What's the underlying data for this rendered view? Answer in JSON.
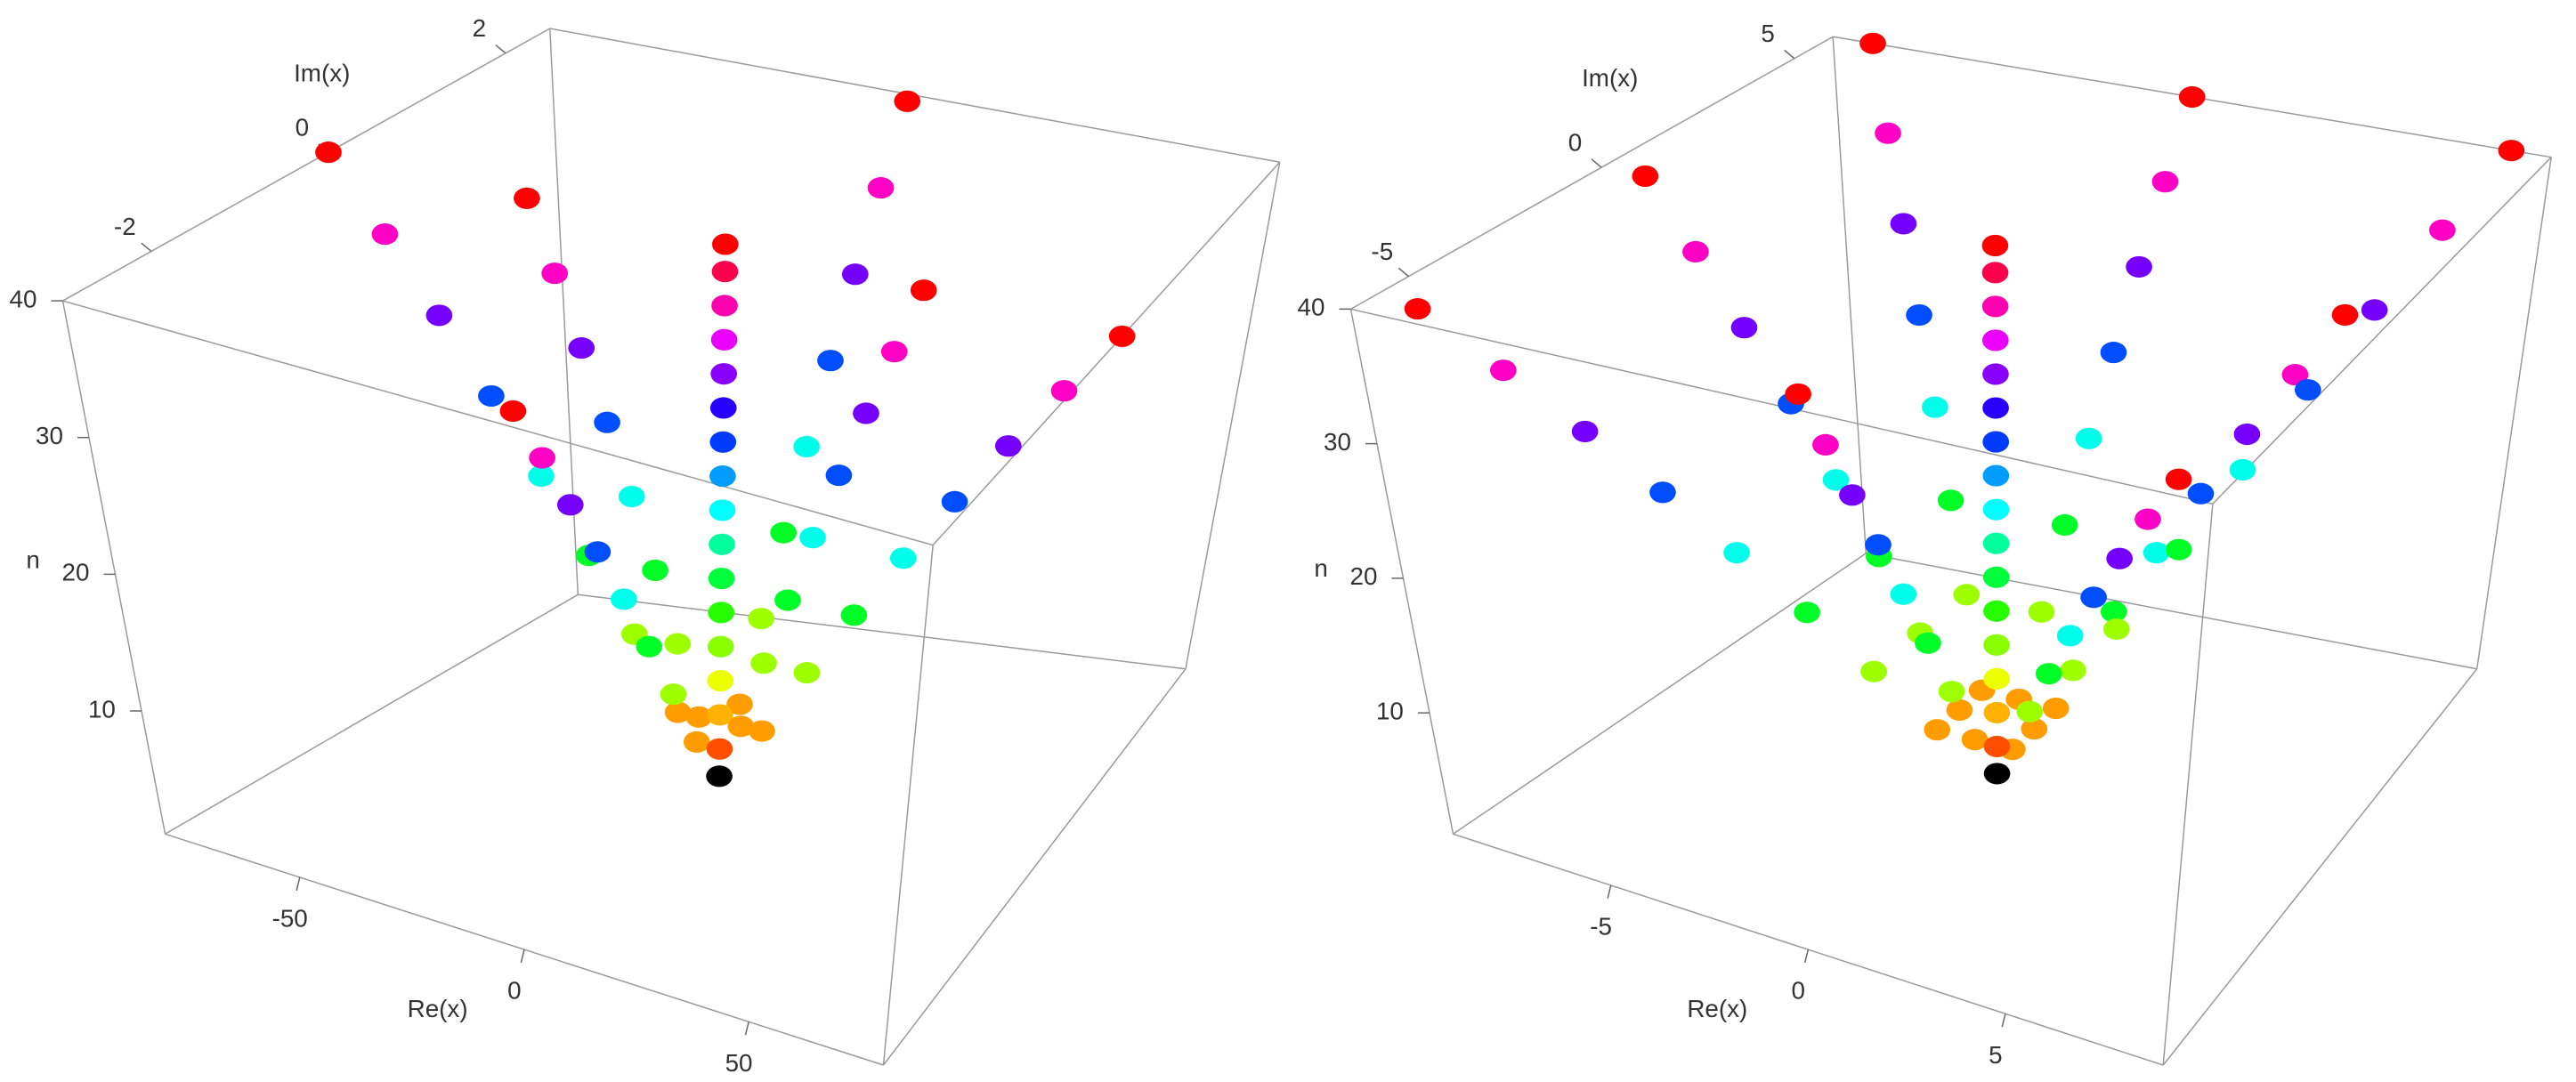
{
  "chart_data": [
    {
      "type": "scatter3d",
      "xlabel": "Re(x)",
      "ylabel": "Im(x)",
      "zlabel": "n",
      "xlim": [
        -80,
        80
      ],
      "ylim": [
        -3,
        2.5
      ],
      "zlim": [
        1,
        40
      ],
      "xticks": [
        -50,
        0,
        50
      ],
      "yticks": [
        -2,
        0,
        2
      ],
      "zticks": [
        10,
        20,
        30,
        40
      ],
      "colormap": [
        "#ff0000",
        "#ffff00",
        "#00ff00",
        "#00ffff",
        "#0000ff",
        "#ff00ff",
        "#ff0000"
      ],
      "series": [
        {
          "x": [
            -10,
            -20,
            -30,
            -40,
            -50,
            -60,
            -70,
            -80
          ],
          "y": [
            0,
            0,
            0,
            0,
            0,
            0,
            0,
            0
          ],
          "z": [
            5,
            10,
            15,
            20,
            25,
            30,
            35,
            40
          ]
        },
        {
          "x": [
            10,
            20,
            30,
            40,
            50,
            60,
            70,
            80
          ],
          "y": [
            0,
            0,
            0,
            0,
            0,
            0,
            0,
            0
          ],
          "z": [
            5,
            10,
            15,
            20,
            25,
            30,
            35,
            40
          ]
        },
        {
          "x": [
            -5,
            -10,
            -15,
            -20,
            -25,
            -30,
            -35,
            -40
          ],
          "y": [
            0,
            0,
            0,
            0,
            0,
            0,
            0,
            0
          ],
          "z": [
            5,
            10,
            15,
            20,
            25,
            30,
            35,
            40
          ]
        },
        {
          "x": [
            5,
            10,
            15,
            20,
            25,
            30,
            35,
            40
          ],
          "y": [
            0,
            0,
            0,
            0,
            0,
            0,
            0,
            0
          ],
          "z": [
            5,
            10,
            15,
            20,
            25,
            30,
            35,
            40
          ]
        },
        {
          "x": [
            0,
            0,
            0,
            0,
            0,
            0,
            0,
            0
          ],
          "y": [
            0.3,
            0.6,
            0.9,
            1.2,
            1.5,
            1.8,
            2.1,
            2.4
          ],
          "z": [
            5,
            10,
            15,
            20,
            25,
            30,
            35,
            40
          ]
        },
        {
          "x": [
            0,
            0,
            0,
            0,
            0,
            0,
            0,
            0
          ],
          "y": [
            -0.35,
            -0.7,
            -1.05,
            -1.4,
            -1.75,
            -2.1,
            -2.45,
            -2.8
          ],
          "z": [
            5,
            10,
            15,
            20,
            25,
            30,
            35,
            40
          ]
        },
        {
          "x": [
            0,
            0,
            0,
            0,
            0,
            0,
            0,
            0,
            0,
            0,
            0,
            0,
            0,
            0,
            0,
            0
          ],
          "y": [
            0,
            0,
            0,
            0,
            0,
            0,
            0,
            0,
            0,
            0,
            0,
            0,
            0,
            0,
            0,
            0
          ],
          "z": [
            3,
            5.5,
            8,
            10.5,
            13,
            15.5,
            18,
            20.5,
            23,
            25.5,
            28,
            30.5,
            33,
            35.5,
            38,
            40
          ]
        },
        {
          "color": "#000000",
          "x": [
            0
          ],
          "y": [
            0
          ],
          "z": [
            1
          ]
        }
      ]
    },
    {
      "type": "scatter3d",
      "xlabel": "Re(x)",
      "ylabel": "Im(x)",
      "zlabel": "n",
      "xlim": [
        -9,
        9
      ],
      "ylim": [
        -6.5,
        6
      ],
      "zlim": [
        1,
        40
      ],
      "xticks": [
        -5,
        0,
        5
      ],
      "yticks": [
        -5,
        0,
        5
      ],
      "zticks": [
        10,
        20,
        30,
        40
      ],
      "colormap": [
        "#ff0000",
        "#ffff00",
        "#00ff00",
        "#00ffff",
        "#0000ff",
        "#ff00ff",
        "#ff0000"
      ],
      "series": [
        {
          "x": [
            1,
            2,
            3,
            4,
            5,
            6,
            7,
            8
          ],
          "y": [
            0,
            0,
            0,
            0,
            0,
            0,
            0,
            0
          ],
          "z": [
            5,
            10,
            15,
            20,
            25,
            30,
            35,
            40
          ]
        },
        {
          "x": [
            -1,
            -2,
            -3,
            -4,
            -5,
            -6,
            -7,
            -8
          ],
          "y": [
            0,
            0,
            0,
            0,
            0,
            0,
            0,
            0
          ],
          "z": [
            5,
            10,
            15,
            20,
            25,
            30,
            35,
            40
          ]
        },
        {
          "x": [
            0,
            0,
            0,
            0,
            0,
            0,
            0,
            0
          ],
          "y": [
            0.75,
            1.5,
            2.25,
            3,
            3.75,
            4.5,
            5.25,
            6
          ],
          "z": [
            5,
            10,
            15,
            20,
            25,
            30,
            35,
            40
          ]
        },
        {
          "x": [
            0,
            0,
            0,
            0,
            0,
            0,
            0,
            0
          ],
          "y": [
            -0.75,
            -1.5,
            -2.25,
            -3,
            -3.75,
            -4.5,
            -5.25,
            -6
          ],
          "z": [
            5,
            10,
            15,
            20,
            25,
            30,
            35,
            40
          ]
        },
        {
          "x": [
            1,
            2,
            3,
            4,
            5,
            6,
            7,
            8
          ],
          "y": [
            0.75,
            1.5,
            2.25,
            3,
            3.75,
            4.5,
            5.25,
            6
          ],
          "z": [
            5,
            10,
            15,
            20,
            25,
            30,
            35,
            40
          ]
        },
        {
          "x": [
            -1,
            -2,
            -3,
            -4,
            -5,
            -6,
            -7,
            -8
          ],
          "y": [
            0.75,
            1.5,
            2.25,
            3,
            3.75,
            4.5,
            5.25,
            6
          ],
          "z": [
            5,
            10,
            15,
            20,
            25,
            30,
            35,
            40
          ]
        },
        {
          "x": [
            1,
            2,
            3,
            4,
            5,
            6,
            7,
            8
          ],
          "y": [
            -0.75,
            -1.5,
            -2.25,
            -3,
            -3.75,
            -4.5,
            -5.25,
            -6
          ],
          "z": [
            5,
            10,
            15,
            20,
            25,
            30,
            35,
            40
          ]
        },
        {
          "x": [
            -1,
            -2,
            -3,
            -4,
            -5,
            -6,
            -7,
            -8
          ],
          "y": [
            -0.75,
            -1.5,
            -2.25,
            -3,
            -3.75,
            -4.5,
            -5.25,
            -6
          ],
          "z": [
            5,
            10,
            15,
            20,
            25,
            30,
            35,
            40
          ]
        },
        {
          "x": [
            0,
            0,
            0,
            0,
            0,
            0,
            0,
            0,
            0,
            0,
            0,
            0,
            0,
            0,
            0,
            0
          ],
          "y": [
            0,
            0,
            0,
            0,
            0,
            0,
            0,
            0,
            0,
            0,
            0,
            0,
            0,
            0,
            0,
            0
          ],
          "z": [
            3,
            5.5,
            8,
            10.5,
            13,
            15.5,
            18,
            20.5,
            23,
            25.5,
            28,
            30.5,
            33,
            35.5,
            38,
            40
          ]
        },
        {
          "color": "#000000",
          "x": [
            0
          ],
          "y": [
            0
          ],
          "z": [
            1
          ]
        }
      ]
    }
  ]
}
